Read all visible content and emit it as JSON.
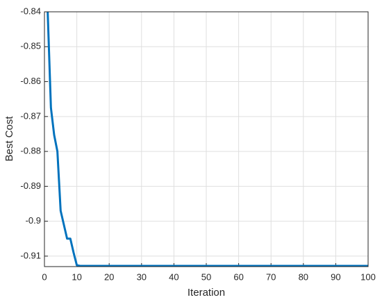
{
  "chart_data": {
    "type": "line",
    "x_label": "Iteration",
    "y_label": "Best Cost",
    "x": [
      1,
      2,
      3,
      4,
      5,
      6,
      7,
      8,
      9,
      10,
      11,
      100
    ],
    "series": [
      {
        "color": "#0072bd",
        "values": [
          -0.84,
          -0.8675,
          -0.8753,
          -0.88,
          -0.897,
          -0.901,
          -0.905,
          -0.905,
          -0.909,
          -0.9126,
          -0.9128,
          -0.9128
        ]
      }
    ],
    "xlim": [
      0,
      100
    ],
    "xticks": [
      0,
      10,
      20,
      30,
      40,
      50,
      60,
      70,
      80,
      90,
      100
    ],
    "ylim": [
      -0.913,
      -0.84
    ],
    "yticks": [
      -0.91,
      -0.9,
      -0.89,
      -0.88,
      -0.87,
      -0.86,
      -0.85,
      -0.84
    ],
    "grid": true
  }
}
